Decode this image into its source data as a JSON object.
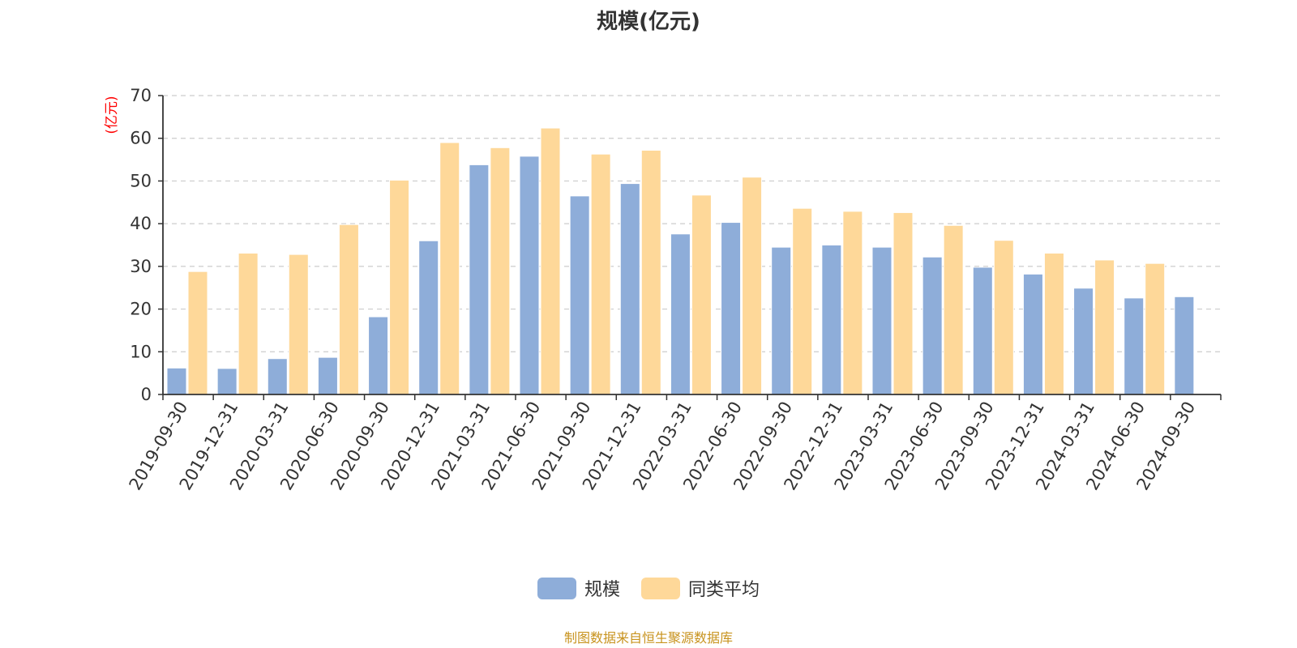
{
  "colors": {
    "series_1": "#8eadd9",
    "series_2": "#fed899",
    "unit_label": "#ff0000",
    "source": "#c8931e",
    "axis": "#333333",
    "grid": "#cccccc"
  },
  "chart_data": {
    "type": "bar",
    "title": "规模(亿元)",
    "ylabel": "(亿元)",
    "xlabel": "",
    "ylim": [
      0,
      70
    ],
    "yticks": [
      0,
      10,
      20,
      30,
      40,
      50,
      60,
      70
    ],
    "grid": true,
    "legend_position": "bottom",
    "categories": [
      "2019-09-30",
      "2019-12-31",
      "2020-03-31",
      "2020-06-30",
      "2020-09-30",
      "2020-12-31",
      "2021-03-31",
      "2021-06-30",
      "2021-09-30",
      "2021-12-31",
      "2022-03-31",
      "2022-06-30",
      "2022-09-30",
      "2022-12-31",
      "2023-03-31",
      "2023-06-30",
      "2023-09-30",
      "2023-12-31",
      "2024-03-31",
      "2024-06-30",
      "2024-09-30"
    ],
    "series": [
      {
        "name": "规模",
        "values": [
          6.2,
          6.1,
          8.4,
          8.7,
          18.2,
          36.0,
          53.8,
          55.8,
          46.5,
          49.4,
          37.6,
          40.3,
          34.5,
          35.0,
          34.5,
          32.2,
          29.8,
          28.2,
          24.9,
          22.6,
          22.9
        ]
      },
      {
        "name": "同类平均",
        "values": [
          28.8,
          33.1,
          32.8,
          39.8,
          50.2,
          59.0,
          57.8,
          62.4,
          56.3,
          57.2,
          46.7,
          50.9,
          43.6,
          42.9,
          42.6,
          39.6,
          36.1,
          33.1,
          31.5,
          30.7,
          null
        ]
      }
    ]
  },
  "legend": {
    "items": [
      "规模",
      "同类平均"
    ]
  },
  "footer": {
    "source": "制图数据来自恒生聚源数据库"
  }
}
